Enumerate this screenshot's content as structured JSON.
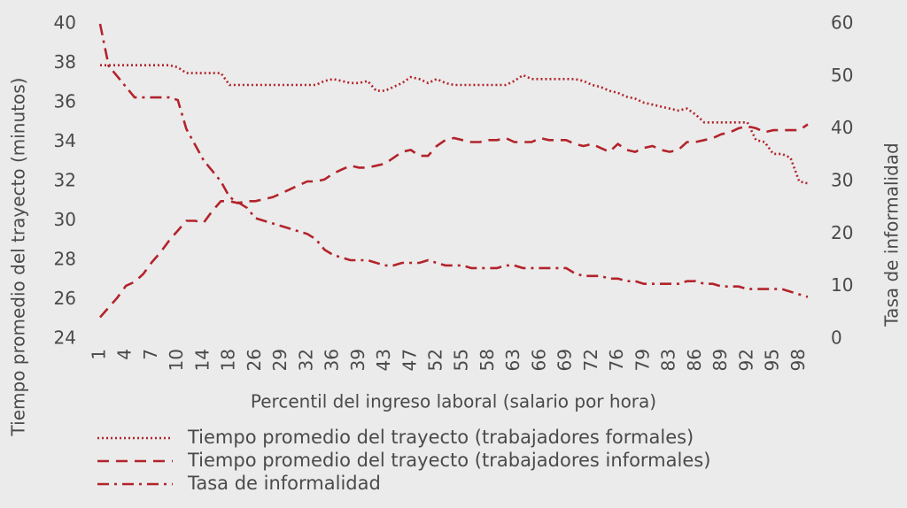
{
  "chart_data": {
    "type": "line",
    "x_label": "Percentil del ingreso laboral (salario por hora)",
    "y_label": "Tiempo promedio del trayecto (minutos)",
    "y2_label": "Tasa de informalidad",
    "categories": [
      "1",
      null,
      null,
      "4",
      null,
      null,
      "7",
      null,
      null,
      "10",
      null,
      null,
      "14",
      null,
      null,
      "18",
      null,
      null,
      "26",
      null,
      null,
      "29",
      null,
      null,
      "32",
      null,
      null,
      "36",
      null,
      null,
      "39",
      null,
      null,
      "43",
      null,
      null,
      "47",
      null,
      null,
      "52",
      null,
      null,
      "55",
      null,
      null,
      "58",
      null,
      null,
      "63",
      null,
      null,
      "66",
      null,
      null,
      "69",
      null,
      null,
      "72",
      null,
      null,
      "76",
      null,
      null,
      "79",
      null,
      null,
      "83",
      null,
      null,
      "86",
      null,
      null,
      "89",
      null,
      null,
      "92",
      null,
      null,
      "95",
      null,
      null,
      "98",
      null
    ],
    "ylim": [
      24,
      40
    ],
    "yticks": [
      24,
      26,
      28,
      30,
      32,
      34,
      36,
      38,
      40
    ],
    "y2lim": [
      0,
      60
    ],
    "y2ticks": [
      0,
      10,
      20,
      30,
      40,
      50,
      60
    ],
    "series": [
      {
        "name": "Tiempo promedio del trayecto (trabajadores formales)",
        "color": "#b3232b",
        "dash": "dotted",
        "values": [
          37.9,
          37.9,
          37.9,
          37.9,
          37.9,
          37.9,
          37.9,
          37.9,
          37.9,
          37.8,
          37.5,
          37.5,
          37.5,
          37.5,
          37.5,
          36.9,
          36.9,
          36.9,
          36.9,
          36.9,
          36.9,
          36.9,
          36.9,
          36.9,
          36.9,
          36.9,
          37.1,
          37.2,
          37.1,
          37.0,
          37.0,
          37.1,
          36.6,
          36.6,
          36.8,
          37.0,
          37.3,
          37.2,
          37.0,
          37.2,
          37.0,
          36.9,
          36.9,
          36.9,
          36.9,
          36.9,
          36.9,
          36.9,
          37.1,
          37.4,
          37.2,
          37.2,
          37.2,
          37.2,
          37.2,
          37.2,
          37.1,
          36.9,
          36.8,
          36.6,
          36.5,
          36.3,
          36.2,
          36.0,
          35.9,
          35.8,
          35.7,
          35.6,
          35.7,
          35.4,
          35.0,
          35.0,
          35.0,
          35.0,
          35.0,
          35.0,
          34.1,
          34.0,
          33.4,
          33.4,
          33.2,
          32.0,
          31.9
        ]
      },
      {
        "name": "Tiempo promedio del trayecto (trabajadores informales)",
        "color": "#b3232b",
        "dash": "dashed",
        "values": [
          25.1,
          25.6,
          26.1,
          26.7,
          26.9,
          27.3,
          27.9,
          28.4,
          29.0,
          29.5,
          30.0,
          30.0,
          29.9,
          30.5,
          31.0,
          31.0,
          30.9,
          31.0,
          31.0,
          31.1,
          31.2,
          31.4,
          31.6,
          31.8,
          32.0,
          32.0,
          32.1,
          32.4,
          32.6,
          32.8,
          32.7,
          32.7,
          32.8,
          32.9,
          33.2,
          33.5,
          33.6,
          33.3,
          33.3,
          33.8,
          34.1,
          34.2,
          34.1,
          34.0,
          34.0,
          34.1,
          34.1,
          34.2,
          34.0,
          34.0,
          34.0,
          34.2,
          34.1,
          34.1,
          34.1,
          33.9,
          33.8,
          33.9,
          33.7,
          33.5,
          33.9,
          33.6,
          33.5,
          33.7,
          33.8,
          33.6,
          33.5,
          33.6,
          34.0,
          34.0,
          34.1,
          34.2,
          34.4,
          34.5,
          34.7,
          34.8,
          34.7,
          34.5,
          34.6,
          34.6,
          34.6,
          34.6,
          34.9
        ]
      },
      {
        "name": "Tasa de informalidad",
        "color": "#b3232b",
        "dash": "dashdot",
        "axis": "y2",
        "values": [
          60,
          52,
          50,
          48,
          46,
          46,
          46,
          46,
          46,
          45.5,
          40,
          37,
          34,
          32,
          30,
          27,
          26,
          25,
          23,
          22.5,
          22,
          21.5,
          21,
          20.5,
          20,
          19,
          17,
          16,
          15.5,
          15,
          15,
          15,
          14.5,
          14,
          14,
          14.5,
          14.5,
          14.5,
          15,
          14.5,
          14,
          14,
          14,
          13.5,
          13.5,
          13.5,
          13.5,
          14,
          14,
          13.5,
          13.5,
          13.5,
          13.5,
          13.5,
          13.5,
          12.5,
          12,
          12,
          12,
          11.5,
          11.5,
          11,
          11,
          10.5,
          10.5,
          10.5,
          10.5,
          10.5,
          11,
          11,
          10.5,
          10.5,
          10,
          10,
          10,
          9.5,
          9.5,
          9.5,
          9.5,
          9.5,
          9,
          8.5,
          8
        ]
      }
    ]
  }
}
